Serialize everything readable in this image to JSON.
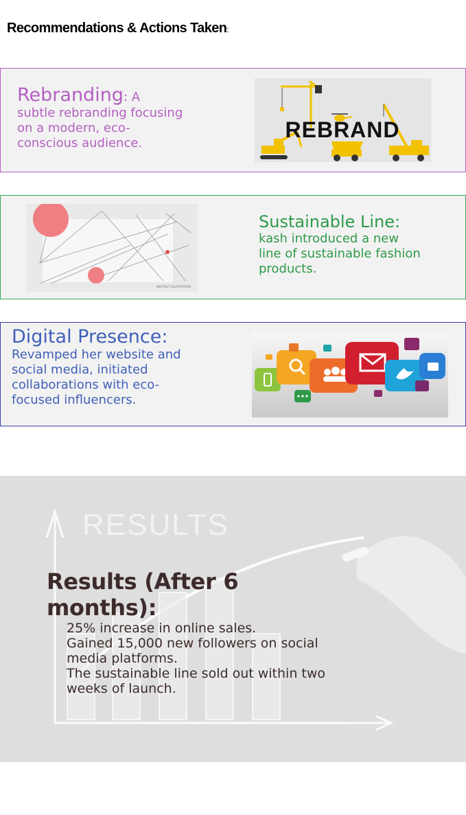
{
  "heading": {
    "text": "Recommendations & Actions Taken",
    "colon": ":"
  },
  "cards": {
    "rebranding": {
      "title": "Rebranding",
      "inline": ": A",
      "body": "subtle rebranding focusing on a modern, eco-conscious audience.",
      "image_text": "REBRAND",
      "color": "#b45fc1"
    },
    "sustainable": {
      "title": "Sustainable Line:",
      "body": "kash introduced a new line of sustainable fashion products.",
      "image_caption": "ABSTRACT ILLUSTRATION",
      "color": "#2e9a48"
    },
    "digital": {
      "title": "Digital Presence:",
      "body": "Revamped her website and social media, initiated collaborations with eco-focused influencers.",
      "color": "#4060b8"
    }
  },
  "results": {
    "bg_label": "RESULTS",
    "title": "Results (After 6 months):",
    "items": [
      "25% increase in online sales.",
      "Gained 15,000 new followers on social media platforms.",
      "The sustainable line sold out within two weeks of launch."
    ],
    "color": "#3d2b2b"
  }
}
